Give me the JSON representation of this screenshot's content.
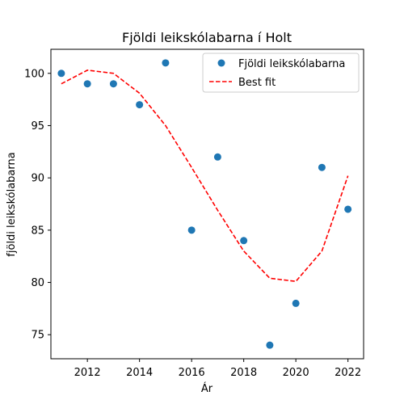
{
  "chart_data": {
    "type": "scatter",
    "title": "Fjöldi leikskólabarna í Holt",
    "xlabel": "Ár",
    "ylabel": "fjöldi leikskólabarna",
    "xlim": [
      2010.6,
      2022.6
    ],
    "ylim": [
      72.7,
      102.3
    ],
    "xticks": [
      2012,
      2014,
      2016,
      2018,
      2020,
      2022
    ],
    "yticks": [
      75,
      80,
      85,
      90,
      95,
      100
    ],
    "legend_position": "top-right",
    "grid": false,
    "series": [
      {
        "name": "Fjöldi leikskólabarna",
        "kind": "scatter",
        "color": "#1f77b4",
        "x": [
          2011,
          2012,
          2013,
          2014,
          2015,
          2016,
          2017,
          2018,
          2019,
          2020,
          2021,
          2022
        ],
        "y": [
          100,
          99,
          99,
          97,
          101,
          85,
          92,
          84,
          74,
          78,
          91,
          87
        ]
      },
      {
        "name": "Best fit",
        "kind": "line",
        "style": "dashed",
        "color": "#ff0000",
        "x": [
          2011,
          2012,
          2013,
          2014,
          2015,
          2016,
          2017,
          2018,
          2019,
          2020,
          2021,
          2022
        ],
        "y": [
          99.0,
          100.3,
          100.0,
          98.1,
          95.0,
          91.0,
          86.9,
          83.0,
          80.4,
          80.1,
          83.0,
          90.2
        ]
      }
    ]
  }
}
